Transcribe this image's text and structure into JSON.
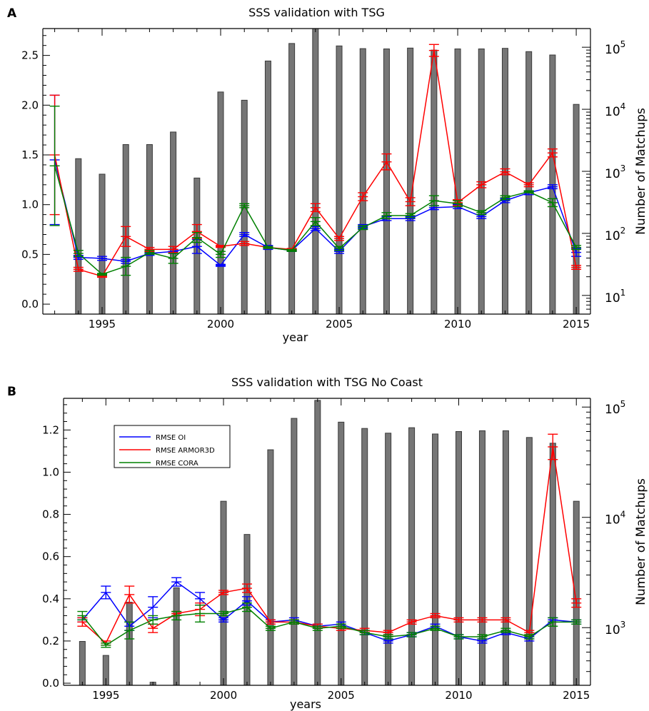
{
  "chart_data": [
    {
      "panel_label": "A",
      "type": "line",
      "overlay_type": "bar",
      "title": "SSS validation with TSG",
      "xlabel": "year",
      "ylabel": "",
      "y2label": "Number of Matchups",
      "xlim": [
        1992.5,
        2015.6
      ],
      "ylim": [
        -0.1,
        2.77
      ],
      "y2scale": "log",
      "y2lim": [
        5,
        200000
      ],
      "xticks": [
        1995,
        2000,
        2005,
        2010,
        2015
      ],
      "xtick_labels": [
        "1995",
        "2000",
        "2005",
        "2010",
        "2015"
      ],
      "yticks": [
        0,
        0.5,
        1,
        1.5,
        2,
        2.5
      ],
      "ytick_labels": [
        "0.0",
        "0.5",
        "1.0",
        "1.5",
        "2.0",
        "2.5"
      ],
      "y2ticks": [
        10,
        100,
        1000,
        10000,
        100000
      ],
      "y2tick_labels": [
        {
          "base": "10",
          "exp": "1"
        },
        {
          "base": "10",
          "exp": "2"
        },
        {
          "base": "10",
          "exp": "3"
        },
        {
          "base": "10",
          "exp": "4"
        },
        {
          "base": "10",
          "exp": "5"
        }
      ],
      "bars": {
        "x": [
          1994,
          1995,
          1996,
          1997,
          1998,
          1999,
          2000,
          2001,
          2002,
          2003,
          2004,
          2005,
          2006,
          2007,
          2008,
          2009,
          2010,
          2011,
          2012,
          2013,
          2014,
          2015
        ],
        "values": [
          1600,
          900,
          2700,
          2700,
          4300,
          780,
          19000,
          14000,
          60000,
          115000,
          200000,
          105000,
          95000,
          94000,
          97000,
          90000,
          94000,
          94000,
          96000,
          85000,
          75000,
          12000
        ]
      },
      "series": [
        {
          "name": "RMSE OI",
          "color": "#0000ff",
          "x": [
            1993,
            1994,
            1995,
            1996,
            1997,
            1998,
            1999,
            2000,
            2001,
            2002,
            2003,
            2004,
            2005,
            2006,
            2007,
            2008,
            2009,
            2010,
            2011,
            2012,
            2013,
            2014,
            2015
          ],
          "values": [
            1.45,
            0.47,
            0.46,
            0.43,
            0.51,
            0.53,
            0.58,
            0.39,
            0.7,
            0.57,
            0.54,
            0.76,
            0.53,
            0.78,
            0.86,
            0.86,
            0.97,
            0.98,
            0.88,
            1.04,
            1.12,
            1.18,
            0.52
          ],
          "errors": [
            0.65,
            0.02,
            0.02,
            0.02,
            0.02,
            0.02,
            0.07,
            0.01,
            0.02,
            0.02,
            0.01,
            0.02,
            0.02,
            0.02,
            0.02,
            0.02,
            0.02,
            0.02,
            0.02,
            0.02,
            0.02,
            0.02,
            0.04
          ]
        },
        {
          "name": "RMSE ARMOR3D",
          "color": "#ff0000",
          "x": [
            1993,
            1994,
            1995,
            1996,
            1997,
            1998,
            1999,
            2000,
            2001,
            2002,
            2003,
            2004,
            2005,
            2006,
            2007,
            2008,
            2009,
            2010,
            2011,
            2012,
            2013,
            2014,
            2015
          ],
          "values": [
            1.5,
            0.35,
            0.28,
            0.68,
            0.55,
            0.55,
            0.73,
            0.58,
            0.61,
            0.57,
            0.55,
            0.97,
            0.66,
            1.08,
            1.43,
            1.03,
            2.55,
            1.02,
            1.2,
            1.33,
            1.2,
            1.52,
            0.37
          ],
          "errors": [
            0.6,
            0.02,
            0.01,
            0.1,
            0.02,
            0.03,
            0.07,
            0.01,
            0.02,
            0.01,
            0.01,
            0.04,
            0.02,
            0.04,
            0.08,
            0.04,
            0.06,
            0.03,
            0.03,
            0.03,
            0.02,
            0.04,
            0.02
          ]
        },
        {
          "name": "RMSE CORA",
          "color": "#008000",
          "x": [
            1993,
            1994,
            1995,
            1996,
            1997,
            1998,
            1999,
            2000,
            2001,
            2002,
            2003,
            2004,
            2005,
            2006,
            2007,
            2008,
            2009,
            2010,
            2011,
            2012,
            2013,
            2014,
            2015
          ],
          "values": [
            1.39,
            0.51,
            0.3,
            0.38,
            0.52,
            0.46,
            0.67,
            0.5,
            0.99,
            0.57,
            0.54,
            0.83,
            0.56,
            0.77,
            0.89,
            0.89,
            1.04,
            1.01,
            0.92,
            1.07,
            1.13,
            1.02,
            0.57
          ],
          "errors": [
            0.6,
            0.03,
            0.01,
            0.09,
            0.02,
            0.05,
            0.05,
            0.03,
            0.02,
            0.01,
            0.01,
            0.04,
            0.02,
            0.02,
            0.03,
            0.02,
            0.05,
            0.03,
            0.02,
            0.02,
            0.01,
            0.04,
            0.02
          ]
        }
      ]
    },
    {
      "panel_label": "B",
      "type": "line",
      "overlay_type": "bar",
      "title": "SSS validation with TSG No Coast",
      "xlabel": "years",
      "ylabel": "",
      "y2label": "Number of Matchups",
      "xlim": [
        1993.2,
        2015.6
      ],
      "ylim": [
        -0.01,
        1.35
      ],
      "y2scale": "log",
      "y2lim": [
        300,
        120000
      ],
      "xticks": [
        1995,
        2000,
        2005,
        2010,
        2015
      ],
      "xtick_labels": [
        "1995",
        "2000",
        "2005",
        "2010",
        "2015"
      ],
      "yticks": [
        0,
        0.2,
        0.4,
        0.6,
        0.8,
        1,
        1.2
      ],
      "ytick_labels": [
        "0.0",
        "0.2",
        "0.4",
        "0.6",
        "0.8",
        "1.0",
        "1.2"
      ],
      "y2ticks": [
        1000,
        10000,
        100000
      ],
      "y2tick_labels": [
        {
          "base": "10",
          "exp": "3"
        },
        {
          "base": "10",
          "exp": "4"
        },
        {
          "base": "10",
          "exp": "5"
        }
      ],
      "legend": {
        "placement": "top-left",
        "entries": [
          "RMSE OI",
          "RMSE ARMOR3D",
          "RMSE CORA"
        ]
      },
      "bars": {
        "x": [
          1994,
          1995,
          1996,
          1997,
          1998,
          1999,
          2000,
          2001,
          2002,
          2003,
          2004,
          2005,
          2006,
          2007,
          2008,
          2009,
          2010,
          2011,
          2012,
          2013,
          2014,
          2015
        ],
        "values": [
          750,
          560,
          1700,
          320,
          2300,
          300,
          14000,
          7000,
          41000,
          79000,
          115000,
          73000,
          64000,
          58000,
          65000,
          57000,
          60000,
          61000,
          61000,
          53000,
          47000,
          14000
        ]
      },
      "series": [
        {
          "name": "RMSE OI",
          "color": "#0000ff",
          "x": [
            1994,
            1995,
            1996,
            1997,
            1998,
            1999,
            2000,
            2001,
            2002,
            2003,
            2004,
            2005,
            2006,
            2007,
            2008,
            2009,
            2010,
            2011,
            2012,
            2013,
            2014,
            2015
          ],
          "values": [
            0.3,
            0.43,
            0.27,
            0.36,
            0.48,
            0.4,
            0.3,
            0.39,
            0.29,
            0.3,
            0.27,
            0.28,
            0.24,
            0.2,
            0.23,
            0.27,
            0.22,
            0.2,
            0.24,
            0.21,
            0.3,
            0.29
          ],
          "errors": [
            0.01,
            0.03,
            0.02,
            0.05,
            0.02,
            0.03,
            0.01,
            0.02,
            0.01,
            0.01,
            0.01,
            0.01,
            0.01,
            0.01,
            0.01,
            0.01,
            0.01,
            0.01,
            0.01,
            0.01,
            0.01,
            0.01
          ]
        },
        {
          "name": "RMSE ARMOR3D",
          "color": "#ff0000",
          "x": [
            1994,
            1995,
            1996,
            1997,
            1998,
            1999,
            2000,
            2001,
            2002,
            2003,
            2004,
            2005,
            2006,
            2007,
            2008,
            2009,
            2010,
            2011,
            2012,
            2013,
            2014,
            2015
          ],
          "values": [
            0.29,
            0.19,
            0.42,
            0.26,
            0.33,
            0.35,
            0.43,
            0.45,
            0.29,
            0.29,
            0.27,
            0.26,
            0.25,
            0.24,
            0.29,
            0.32,
            0.3,
            0.3,
            0.3,
            0.24,
            1.12,
            0.38
          ],
          "errors": [
            0.02,
            0.01,
            0.04,
            0.02,
            0.01,
            0.03,
            0.01,
            0.02,
            0.01,
            0.01,
            0.01,
            0.01,
            0.01,
            0.01,
            0.01,
            0.01,
            0.01,
            0.01,
            0.01,
            0.01,
            0.06,
            0.02
          ]
        },
        {
          "name": "RMSE CORA",
          "color": "#008000",
          "x": [
            1994,
            1995,
            1996,
            1997,
            1998,
            1999,
            2000,
            2001,
            2002,
            2003,
            2004,
            2005,
            2006,
            2007,
            2008,
            2009,
            2010,
            2011,
            2012,
            2013,
            2014,
            2015
          ],
          "values": [
            0.32,
            0.18,
            0.25,
            0.3,
            0.32,
            0.33,
            0.33,
            0.36,
            0.26,
            0.29,
            0.26,
            0.27,
            0.24,
            0.22,
            0.23,
            0.26,
            0.22,
            0.22,
            0.25,
            0.22,
            0.29,
            0.29
          ],
          "errors": [
            0.02,
            0.01,
            0.04,
            0.02,
            0.02,
            0.04,
            0.01,
            0.02,
            0.01,
            0.01,
            0.01,
            0.01,
            0.01,
            0.01,
            0.01,
            0.01,
            0.01,
            0.01,
            0.01,
            0.01,
            0.02,
            0.01
          ]
        }
      ]
    }
  ]
}
